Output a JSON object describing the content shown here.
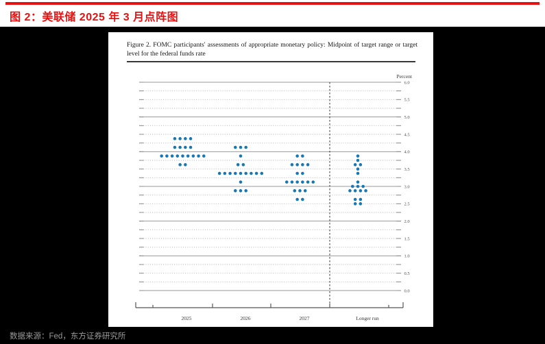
{
  "page": {
    "header": {
      "title": "图 2：美联储 2025 年 3 月点阵图"
    },
    "footer": {
      "source": "数据来源：Fed，东方证券研究所"
    },
    "colors": {
      "accent": "#e81111",
      "dot": "#1878b4",
      "page_bg": "#000000",
      "card_bg": "#ffffff",
      "grid_solid": "#999999",
      "grid_dotted": "#b0b0b0",
      "axis": "#555555",
      "tick_label": "#4a4a4a"
    }
  },
  "chart_data": {
    "type": "scatter",
    "subtype": "fomc-dot-plot",
    "title": "Figure 2. FOMC participants' assessments of appropriate monetary policy: Midpoint of target range or target level for the federal funds rate",
    "ylabel": "Percent",
    "ylim": [
      0.0,
      6.0
    ],
    "grid_step": 0.25,
    "solid_grid_at_integers": true,
    "grid": "on",
    "legend_position": "none",
    "y_tick_labels": [
      "6.0",
      "5.5",
      "5.0",
      "4.5",
      "4.0",
      "3.5",
      "3.0",
      "2.5",
      "2.0",
      "1.5",
      "1.0",
      "0.5",
      "0.0"
    ],
    "separator_before_category": "Longer run",
    "categories": [
      "2025",
      "2026",
      "2027",
      "Longer run"
    ],
    "columns": [
      {
        "label": "2025",
        "dots": [
          {
            "rate": 4.375,
            "count": 4
          },
          {
            "rate": 4.125,
            "count": 4
          },
          {
            "rate": 3.875,
            "count": 9
          },
          {
            "rate": 3.625,
            "count": 2
          }
        ]
      },
      {
        "label": "2026",
        "dots": [
          {
            "rate": 4.125,
            "count": 3
          },
          {
            "rate": 3.875,
            "count": 1
          },
          {
            "rate": 3.625,
            "count": 2
          },
          {
            "rate": 3.375,
            "count": 9
          },
          {
            "rate": 3.125,
            "count": 1
          },
          {
            "rate": 2.875,
            "count": 3
          }
        ]
      },
      {
        "label": "2027",
        "dots": [
          {
            "rate": 3.875,
            "count": 2
          },
          {
            "rate": 3.625,
            "count": 4
          },
          {
            "rate": 3.375,
            "count": 2
          },
          {
            "rate": 3.125,
            "count": 6
          },
          {
            "rate": 2.875,
            "count": 3
          },
          {
            "rate": 2.625,
            "count": 2
          }
        ]
      },
      {
        "label": "Longer run",
        "dots": [
          {
            "rate": 3.875,
            "count": 1
          },
          {
            "rate": 3.75,
            "count": 1
          },
          {
            "rate": 3.625,
            "count": 2
          },
          {
            "rate": 3.5,
            "count": 1
          },
          {
            "rate": 3.375,
            "count": 1
          },
          {
            "rate": 3.125,
            "count": 1
          },
          {
            "rate": 3.0,
            "count": 3
          },
          {
            "rate": 2.875,
            "count": 4
          },
          {
            "rate": 2.625,
            "count": 2
          },
          {
            "rate": 2.5,
            "count": 2
          }
        ]
      }
    ]
  }
}
